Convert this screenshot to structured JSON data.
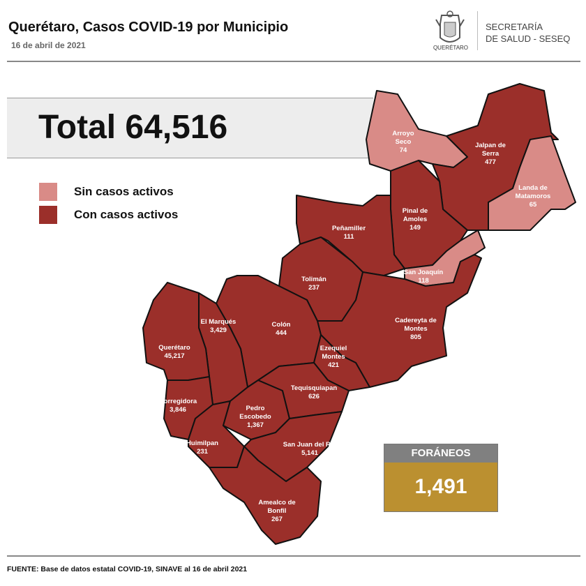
{
  "header": {
    "title": "Querétaro, Casos COVID-19 por Municipio",
    "date": "16 de abril de 2021",
    "logo_text": "QUERÉTARO",
    "secretaria_line1": "SECRETARÍA",
    "secretaria_line2": "DE SALUD - SESEQ"
  },
  "total": "Total 64,516",
  "legend": [
    {
      "label": "Sin casos activos",
      "color": "#d98b87"
    },
    {
      "label": "Con casos activos",
      "color": "#9b2f2a"
    }
  ],
  "colors": {
    "inactive": "#d98b87",
    "active": "#9b2f2a",
    "foraneos_header": "#808080",
    "foraneos_value": "#bb9030"
  },
  "municipios": [
    {
      "name": "Arroyo Seco",
      "lines": [
        "Arroyo",
        "Seco"
      ],
      "cases": "74",
      "active": false
    },
    {
      "name": "Jalpan de Serra",
      "lines": [
        "Jalpan de",
        "Serra"
      ],
      "cases": "477",
      "active": true
    },
    {
      "name": "Landa de Matamoros",
      "lines": [
        "Landa de",
        "Matamoros"
      ],
      "cases": "65",
      "active": false
    },
    {
      "name": "Pinal de Amoles",
      "lines": [
        "Pinal de",
        "Amoles"
      ],
      "cases": "149",
      "active": true
    },
    {
      "name": "San Joaquín",
      "lines": [
        "San Joaquín"
      ],
      "cases": "118",
      "active": false
    },
    {
      "name": "Peñamiller",
      "lines": [
        "Peñamiller"
      ],
      "cases": "111",
      "active": true
    },
    {
      "name": "Cadereyta de Montes",
      "lines": [
        "Cadereyta de",
        "Montes"
      ],
      "cases": "805",
      "active": true
    },
    {
      "name": "Tolimán",
      "lines": [
        "Tolimán"
      ],
      "cases": "237",
      "active": true
    },
    {
      "name": "Colón",
      "lines": [
        "Colón"
      ],
      "cases": "444",
      "active": true
    },
    {
      "name": "El Marqués",
      "lines": [
        "El  Marqués"
      ],
      "cases": "3,429",
      "active": true
    },
    {
      "name": "Querétaro",
      "lines": [
        "Querétaro"
      ],
      "cases": "45,217",
      "active": true
    },
    {
      "name": "Corregidora",
      "lines": [
        "Corregidora"
      ],
      "cases": "3,846",
      "active": true
    },
    {
      "name": "Huimilpan",
      "lines": [
        "Huimilpan"
      ],
      "cases": "231",
      "active": true
    },
    {
      "name": "Pedro Escobedo",
      "lines": [
        "Pedro",
        "Escobedo"
      ],
      "cases": "1,367",
      "active": true
    },
    {
      "name": "Ezequiel Montes",
      "lines": [
        "Ezequiel",
        "Montes"
      ],
      "cases": "421",
      "active": true
    },
    {
      "name": "Tequisquiapan",
      "lines": [
        "Tequisquiapan"
      ],
      "cases": "626",
      "active": true
    },
    {
      "name": "San Juan del Río",
      "lines": [
        "San Juan del Río"
      ],
      "cases": "5,141",
      "active": true
    },
    {
      "name": "Amealco de Bonfil",
      "lines": [
        "Amealco de",
        "Bonfil"
      ],
      "cases": "267",
      "active": true
    }
  ],
  "foraneos": {
    "label": "FORÁNEOS",
    "value": "1,491"
  },
  "source": "FUENTE: Base de datos estatal COVID-19, SINAVE al 16 de abril 2021"
}
